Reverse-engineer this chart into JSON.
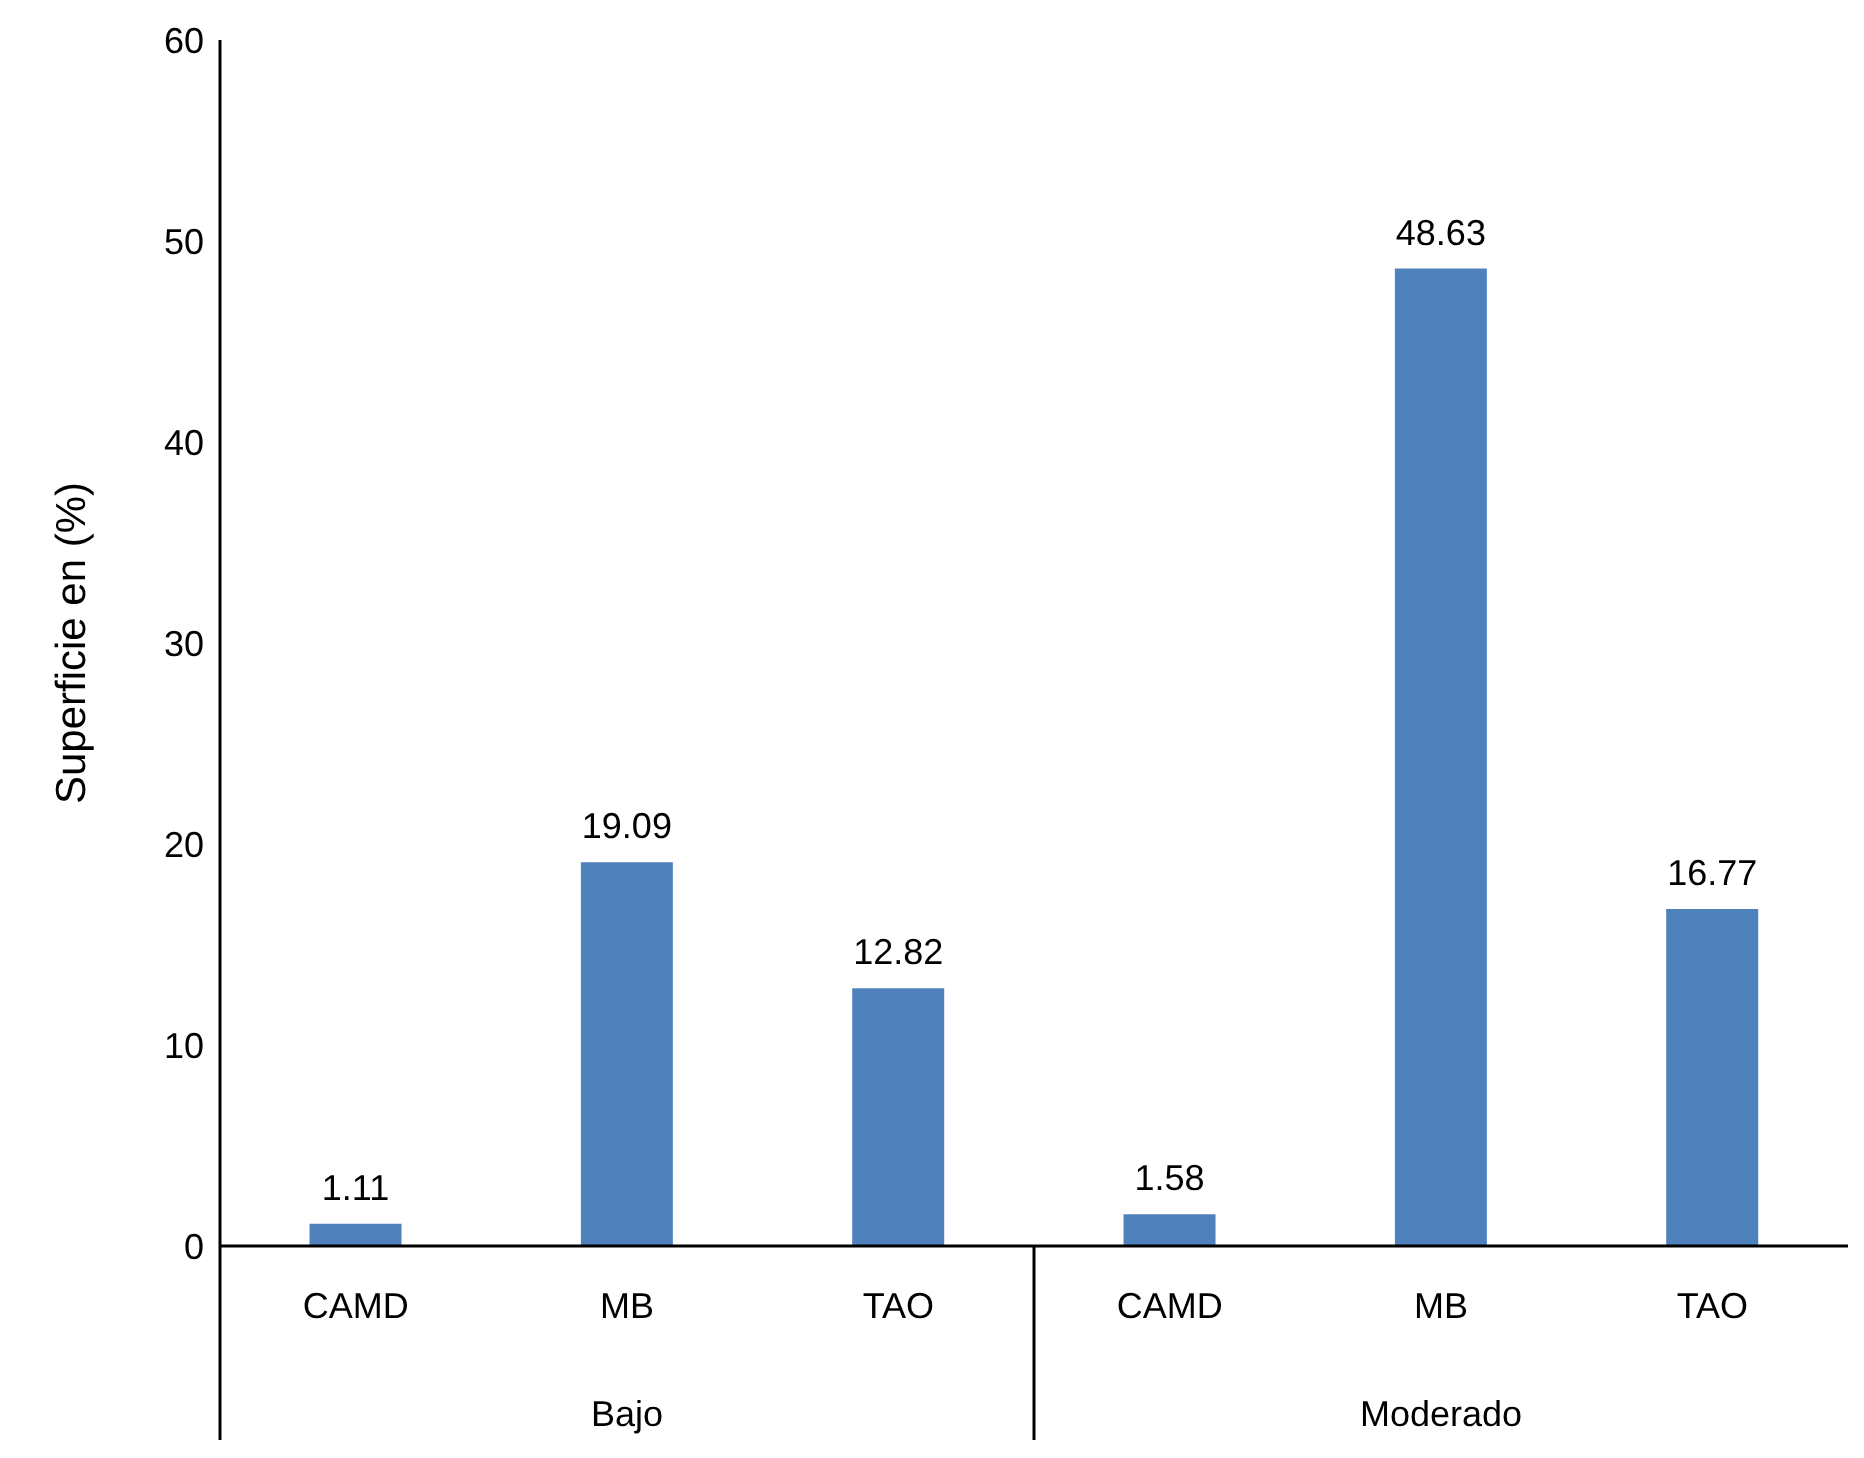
{
  "chart_data": {
    "type": "bar",
    "ylabel": "Superficie en (%)",
    "categories": [
      "CAMD",
      "MB",
      "TAO",
      "CAMD",
      "MB",
      "TAO"
    ],
    "values": [
      1.11,
      19.09,
      12.82,
      1.58,
      48.63,
      16.77
    ],
    "color": "#4f81bd",
    "ylim": [
      0,
      60
    ],
    "yticks": [
      0,
      10,
      20,
      30,
      40,
      50,
      60
    ],
    "data_labels": true,
    "annotations": [
      "Bajo",
      "Moderado"
    ]
  }
}
